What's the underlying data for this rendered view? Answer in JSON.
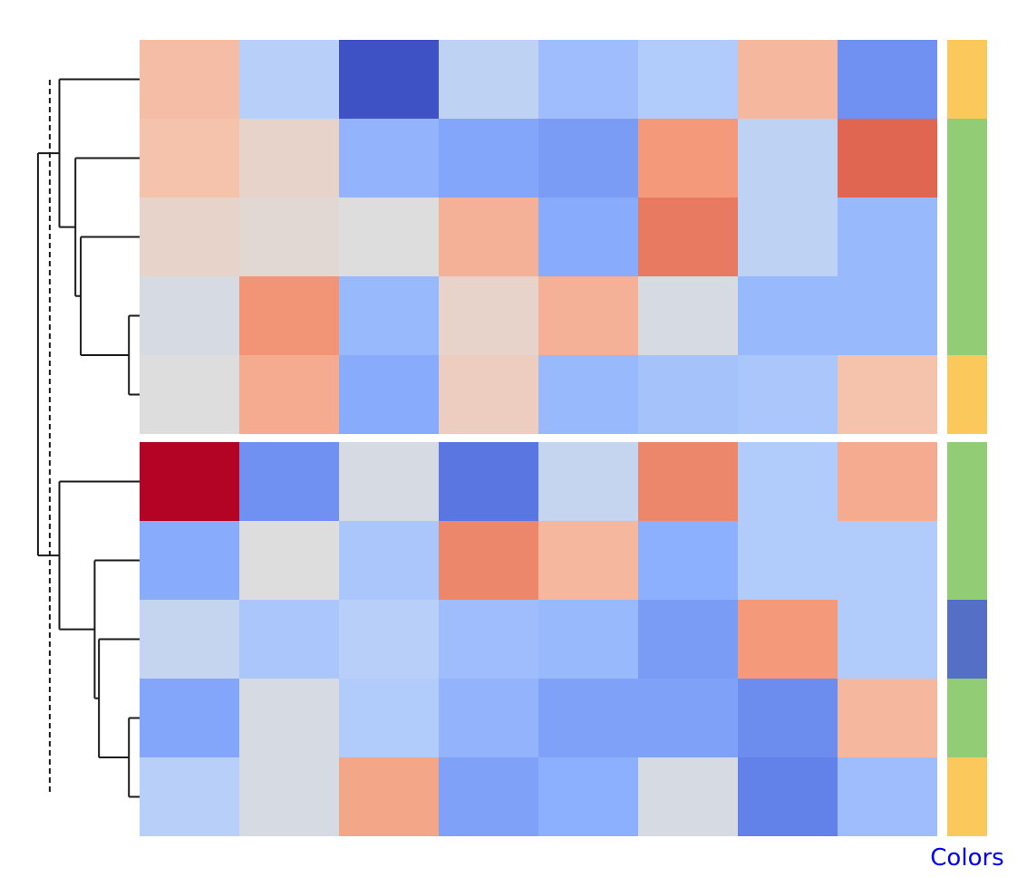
{
  "chart_data": {
    "type": "heatmap",
    "title": "",
    "xlabel": "",
    "ylabel": "",
    "colormap": "coolwarm",
    "value_range": [
      -3,
      3
    ],
    "rows": 10,
    "cols": 8,
    "values": [
      [
        0.6,
        -0.5,
        -2.9,
        -0.4,
        -0.9,
        -0.6,
        0.7,
        -1.8
      ],
      [
        0.5,
        0.2,
        -1.1,
        -1.4,
        -1.6,
        1.2,
        -0.4,
        2.0
      ],
      [
        0.2,
        0.1,
        0.0,
        0.8,
        -1.3,
        1.7,
        -0.4,
        -1.0
      ],
      [
        -0.1,
        1.3,
        -1.0,
        0.2,
        0.8,
        -0.1,
        -1.0,
        -1.0
      ],
      [
        0.0,
        0.9,
        -1.3,
        0.3,
        -1.0,
        -0.8,
        -0.7,
        0.5
      ],
      [
        3.0,
        -1.8,
        -0.1,
        -2.3,
        -0.3,
        1.5,
        -0.6,
        0.9
      ],
      [
        -1.3,
        0.0,
        -0.7,
        1.5,
        0.7,
        -1.2,
        -0.6,
        -0.6
      ],
      [
        -0.3,
        -0.7,
        -0.5,
        -0.9,
        -1.0,
        -1.6,
        1.2,
        -0.6
      ],
      [
        -1.4,
        -0.1,
        -0.6,
        -1.1,
        -1.5,
        -1.5,
        -1.9,
        0.7
      ],
      [
        -0.5,
        -0.1,
        1.0,
        -1.5,
        -1.2,
        -0.1,
        -2.1,
        -0.9
      ]
    ],
    "row_colors": [
      "#fac85b",
      "#92cc75",
      "#92cc75",
      "#92cc75",
      "#fac85b",
      "#92cc75",
      "#92cc75",
      "#5470c6",
      "#92cc75",
      "#fac85b"
    ],
    "row_color_label": "Colors",
    "row_groups_split_after": 5,
    "dendrogram": {
      "leaf_order": [
        0,
        1,
        2,
        3,
        4,
        5,
        6,
        7,
        8,
        9
      ],
      "merges": [
        {
          "a": 3,
          "b": 4,
          "height": 0.1
        },
        {
          "a": 2,
          "b": "m0",
          "height": 0.55
        },
        {
          "a": 1,
          "b": "m1",
          "height": 0.6
        },
        {
          "a": 0,
          "b": "m2",
          "height": 0.75
        },
        {
          "a": 8,
          "b": 9,
          "height": 0.1
        },
        {
          "a": 7,
          "b": "m4",
          "height": 0.38
        },
        {
          "a": 6,
          "b": "m5",
          "height": 0.42
        },
        {
          "a": 5,
          "b": "m6",
          "height": 0.75
        },
        {
          "a": "m3",
          "b": "m7",
          "height": 0.95
        }
      ],
      "cut_height": 0.84
    },
    "grid": false
  }
}
